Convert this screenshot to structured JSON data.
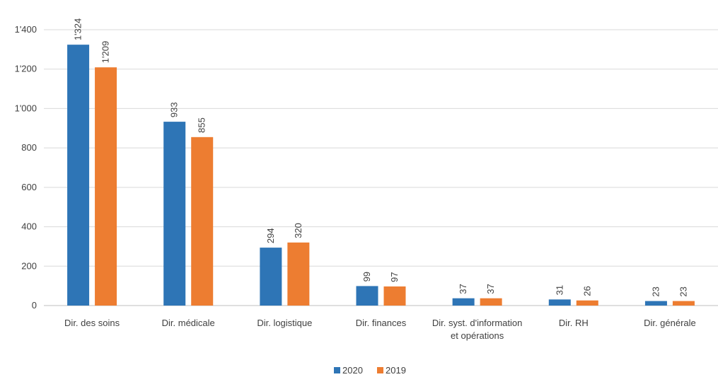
{
  "chart_data": {
    "type": "bar",
    "title": "",
    "xlabel": "",
    "ylabel": "",
    "ylim": [
      0,
      1400
    ],
    "yticks": [
      0,
      200,
      400,
      600,
      800,
      1000,
      1200,
      1400
    ],
    "ytick_labels": [
      "0",
      "200",
      "400",
      "600",
      "800",
      "1'000",
      "1'200",
      "1'400"
    ],
    "grid": true,
    "legend_position": "bottom",
    "categories": [
      [
        "Dir. des soins"
      ],
      [
        "Dir. médicale"
      ],
      [
        "Dir. logistique"
      ],
      [
        "Dir. finances"
      ],
      [
        "Dir. syst. d'information",
        "et opérations"
      ],
      [
        "Dir. RH"
      ],
      [
        "Dir. générale"
      ]
    ],
    "series": [
      {
        "name": "2020",
        "color": "#2E75B6",
        "values": [
          1324,
          933,
          294,
          99,
          37,
          31,
          23
        ],
        "data_labels": [
          "1'324",
          "933",
          "294",
          "99",
          "37",
          "31",
          "23"
        ]
      },
      {
        "name": "2019",
        "color": "#ED7D31",
        "values": [
          1209,
          855,
          320,
          97,
          37,
          26,
          23
        ],
        "data_labels": [
          "1'209",
          "855",
          "320",
          "97",
          "37",
          "26",
          "23"
        ]
      }
    ]
  }
}
